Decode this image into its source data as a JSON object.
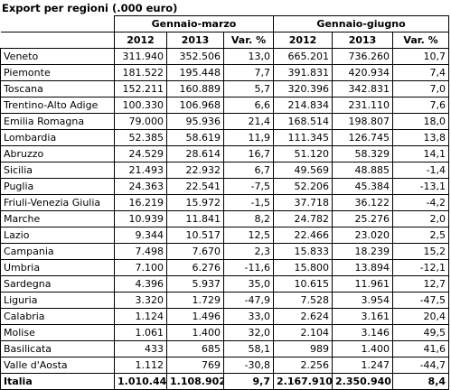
{
  "title": "Export per regioni (.000 euro)",
  "header": {
    "group1": "Gennaio-marzo",
    "group2": "Gennaio-giugno",
    "cols": [
      "2012",
      "2013",
      "Var. %",
      "2012",
      "2013",
      "Var. %"
    ]
  },
  "rows": [
    {
      "name": "Veneto",
      "v": [
        "311.940",
        "352.506",
        "13,0",
        "665.201",
        "736.260",
        "10,7"
      ]
    },
    {
      "name": "Piemonte",
      "v": [
        "181.522",
        "195.448",
        "7,7",
        "391.831",
        "420.934",
        "7,4"
      ]
    },
    {
      "name": "Toscana",
      "v": [
        "152.211",
        "160.889",
        "5,7",
        "320.396",
        "342.831",
        "7,0"
      ]
    },
    {
      "name": "Trentino-Alto Adige",
      "v": [
        "100.330",
        "106.968",
        "6,6",
        "214.834",
        "231.110",
        "7,6"
      ]
    },
    {
      "name": "Emilia Romagna",
      "v": [
        "79.000",
        "95.936",
        "21,4",
        "168.514",
        "198.807",
        "18,0"
      ]
    },
    {
      "name": "Lombardia",
      "v": [
        "52.385",
        "58.619",
        "11,9",
        "111.345",
        "126.745",
        "13,8"
      ]
    },
    {
      "name": "Abruzzo",
      "v": [
        "24.529",
        "28.614",
        "16,7",
        "51.120",
        "58.329",
        "14,1"
      ]
    },
    {
      "name": "Sicilia",
      "v": [
        "21.493",
        "22.932",
        "6,7",
        "49.569",
        "48.885",
        "-1,4"
      ]
    },
    {
      "name": "Puglia",
      "v": [
        "24.363",
        "22.541",
        "-7,5",
        "52.206",
        "45.384",
        "-13,1"
      ]
    },
    {
      "name": "Friuli-Venezia Giulia",
      "v": [
        "16.219",
        "15.972",
        "-1,5",
        "37.718",
        "36.122",
        "-4,2"
      ]
    },
    {
      "name": "Marche",
      "v": [
        "10.939",
        "11.841",
        "8,2",
        "24.782",
        "25.276",
        "2,0"
      ]
    },
    {
      "name": "Lazio",
      "v": [
        "9.344",
        "10.517",
        "12,5",
        "22.466",
        "23.020",
        "2,5"
      ]
    },
    {
      "name": "Campania",
      "v": [
        "7.498",
        "7.670",
        "2,3",
        "15.833",
        "18.239",
        "15,2"
      ]
    },
    {
      "name": "Umbria",
      "v": [
        "7.100",
        "6.276",
        "-11,6",
        "15.800",
        "13.894",
        "-12,1"
      ]
    },
    {
      "name": "Sardegna",
      "v": [
        "4.396",
        "5.937",
        "35,0",
        "10.615",
        "11.961",
        "12,7"
      ]
    },
    {
      "name": "Liguria",
      "v": [
        "3.320",
        "1.729",
        "-47,9",
        "7.528",
        "3.954",
        "-47,5"
      ]
    },
    {
      "name": "Calabria",
      "v": [
        "1.124",
        "1.496",
        "33,0",
        "2.624",
        "3.161",
        "20,4"
      ]
    },
    {
      "name": "Molise",
      "v": [
        "1.061",
        "1.400",
        "32,0",
        "2.104",
        "3.146",
        "49,5"
      ]
    },
    {
      "name": "Basilicata",
      "v": [
        "433",
        "685",
        "58,1",
        "989",
        "1.400",
        "41,6"
      ]
    },
    {
      "name": "Valle d'Aosta",
      "v": [
        "1.112",
        "769",
        "-30,8",
        "2.256",
        "1.247",
        "-44,7"
      ]
    }
  ],
  "total": {
    "name": "Italia",
    "v": [
      "1.010.443",
      "1.108.902",
      "9,7",
      "2.167.910",
      "2.350.940",
      "8,4"
    ]
  }
}
